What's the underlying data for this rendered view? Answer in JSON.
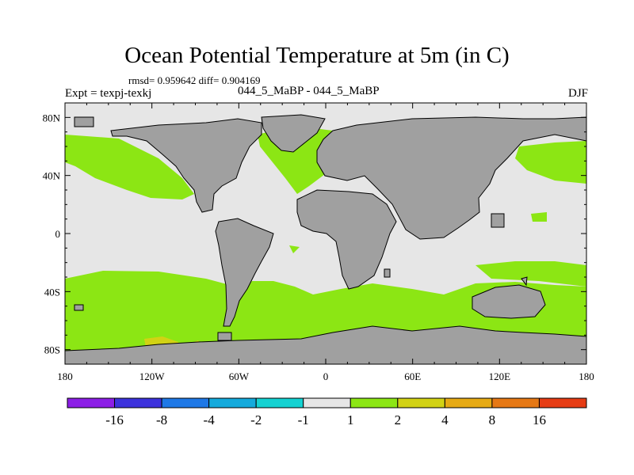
{
  "chart_data": {
    "type": "heatmap",
    "title": "Ocean Potential Temperature at 5m (in C)",
    "stats": "rmsd= 0.959642 diff= 0.904169",
    "experiment": "Expt = texpj-texkj",
    "subtitle": "044_5_MaBP - 044_5_MaBP",
    "season": "DJF",
    "x_ticks": [
      "180",
      "120W",
      "60W",
      "0",
      "60E",
      "120E",
      "180"
    ],
    "y_ticks": [
      "80N",
      "40N",
      "0",
      "40S",
      "80S"
    ],
    "xlim": [
      -180,
      180
    ],
    "ylim": [
      -90,
      90
    ],
    "land_color": "#a0a0a0",
    "colorbar": {
      "colors": [
        "#8c1ee6",
        "#3c32dc",
        "#1e78e6",
        "#14aadc",
        "#14d2d2",
        "#e6e6e6",
        "#8ce614",
        "#d2d214",
        "#e6aa14",
        "#e67814",
        "#e63c14"
      ],
      "labels": [
        "-16",
        "-8",
        "-4",
        "-2",
        "-1",
        "1",
        "2",
        "4",
        "8",
        "16"
      ]
    }
  }
}
